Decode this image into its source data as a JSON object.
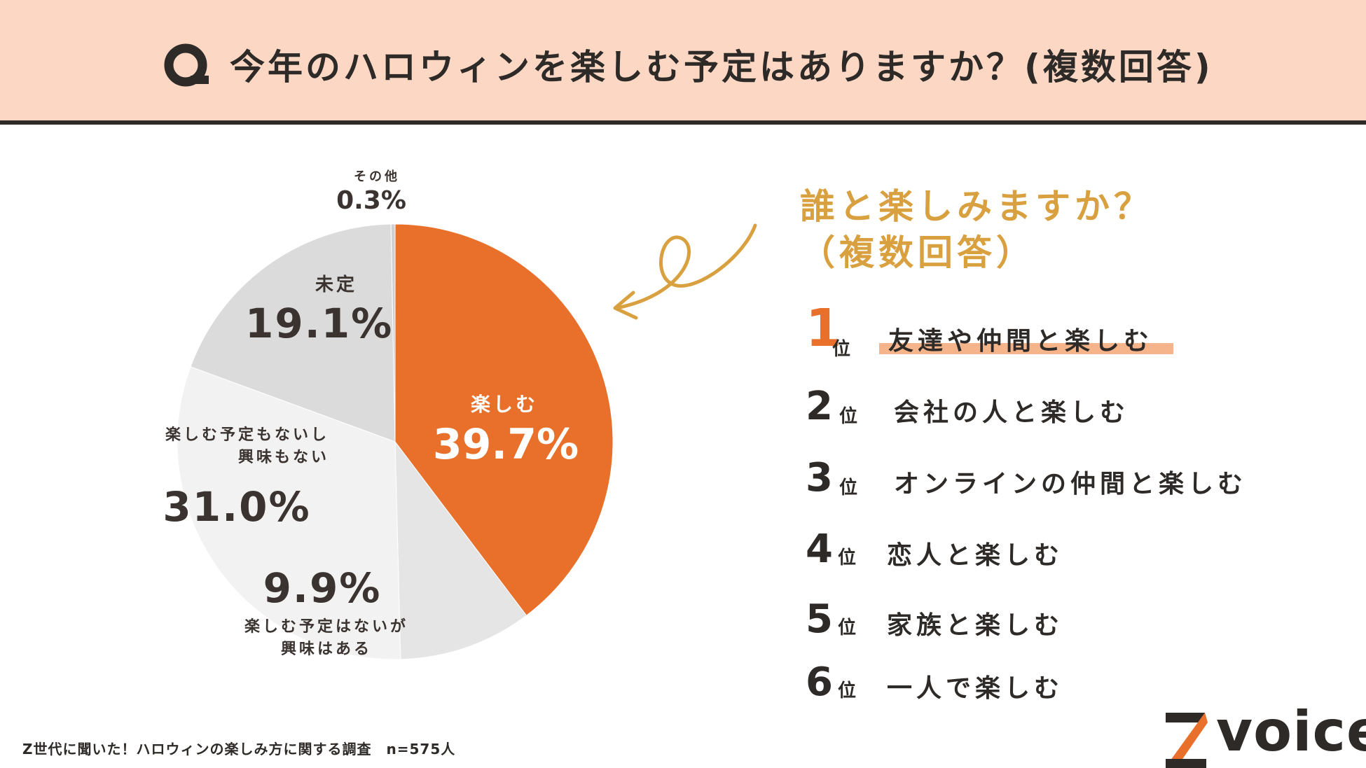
{
  "header": {
    "icon": "q-icon",
    "title": "今年のハロウィンを楽しむ予定はありますか？(複数回答)"
  },
  "chart_data": {
    "type": "pie",
    "slices": [
      {
        "label": "楽しむ",
        "value": 39.7,
        "display": "39.7%",
        "color": "#e8702a"
      },
      {
        "label": "楽しむ予定はないが\n興味はある",
        "value": 9.9,
        "display": "9.9%",
        "color": "#e6e5e5"
      },
      {
        "label": "楽しむ予定もないし\n興味もない",
        "value": 31.0,
        "display": "31.0%",
        "color": "#f3f2f2"
      },
      {
        "label": "未定",
        "value": 19.1,
        "display": "19.1%",
        "color": "#dcdbdb"
      },
      {
        "label": "その他",
        "value": 0.3,
        "display": "0.3%",
        "color": "#cfcfcf"
      }
    ]
  },
  "ranking": {
    "title": "誰と楽しみますか？\n（複数回答）",
    "unit": "位",
    "accent_color": "#e8702a",
    "title_color": "#d9a040",
    "items": [
      {
        "rank": "1",
        "text": "友達や仲間と楽しむ"
      },
      {
        "rank": "2",
        "text": "会社の人と楽しむ"
      },
      {
        "rank": "3",
        "text": "オンラインの仲間と楽しむ"
      },
      {
        "rank": "4",
        "text": "恋人と楽しむ"
      },
      {
        "rank": "5",
        "text": "家族と楽しむ"
      },
      {
        "rank": "6",
        "text": "一人で楽しむ"
      }
    ]
  },
  "footnote": "Z世代に聞いた！ハロウィンの楽しみ方に関する調査　n=575人",
  "brand": {
    "text": "voice",
    "mark": "Z",
    "mark_color": "#e8702a"
  }
}
